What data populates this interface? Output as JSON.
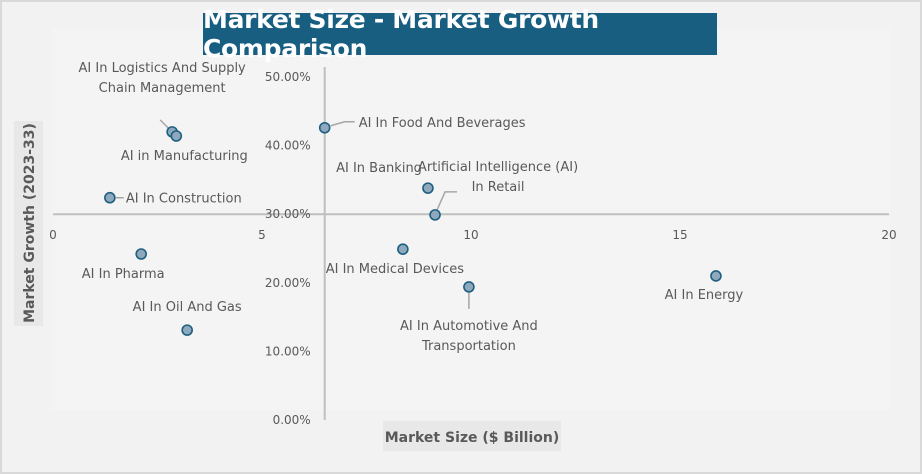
{
  "chart_data": {
    "type": "scatter",
    "title": "Market Size - Market Growth Comparison",
    "xlabel": "Market Size ($ Billion)",
    "ylabel": "Market Growth (2023-33)",
    "xlim": [
      0,
      20
    ],
    "ylim": [
      0,
      50
    ],
    "x_ticks": [
      "0",
      "5",
      "10",
      "15",
      "20"
    ],
    "x_tick_values": [
      0,
      5,
      10,
      15,
      20
    ],
    "y_ticks": [
      "0.00%",
      "10.00%",
      "20.00%",
      "30.00%",
      "40.00%",
      "50.00%"
    ],
    "y_tick_values": [
      0,
      10,
      20,
      30,
      40,
      50
    ],
    "x_axis_crosses_y": 30,
    "y_axis_crosses_x": 6.5,
    "grid": false,
    "legend": "none",
    "colors": {
      "marker_fill": "#8ea9bd",
      "marker_stroke": "#1f5f80",
      "axis": "#bfbfbf",
      "text": "#595959",
      "title_bg": "#175e81"
    },
    "points": [
      {
        "label_lines": [
          "AI In Logistics And Supply",
          "Chain Management"
        ],
        "x": 2.85,
        "y": 42.0
      },
      {
        "label_lines": [
          "AI in Manufacturing"
        ],
        "x": 2.95,
        "y": 41.4
      },
      {
        "label_lines": [
          "AI In Construction"
        ],
        "x": 1.36,
        "y": 32.4
      },
      {
        "label_lines": [
          "AI In Food And Beverages"
        ],
        "x": 6.5,
        "y": 42.6
      },
      {
        "label_lines": [
          "AI In Banking"
        ],
        "x": 8.97,
        "y": 33.8
      },
      {
        "label_lines": [
          "Artificial Intelligence (AI)",
          "In Retail"
        ],
        "x": 9.14,
        "y": 29.9
      },
      {
        "label_lines": [
          "AI In Pharma"
        ],
        "x": 2.11,
        "y": 24.2
      },
      {
        "label_lines": [
          "AI In Oil And Gas"
        ],
        "x": 3.21,
        "y": 13.1
      },
      {
        "label_lines": [
          "AI In Medical Devices"
        ],
        "x": 8.37,
        "y": 24.9
      },
      {
        "label_lines": [
          "AI In Automotive And",
          "Transportation"
        ],
        "x": 9.95,
        "y": 19.4
      },
      {
        "label_lines": [
          "AI In Energy"
        ],
        "x": 15.86,
        "y": 21.0
      }
    ]
  }
}
